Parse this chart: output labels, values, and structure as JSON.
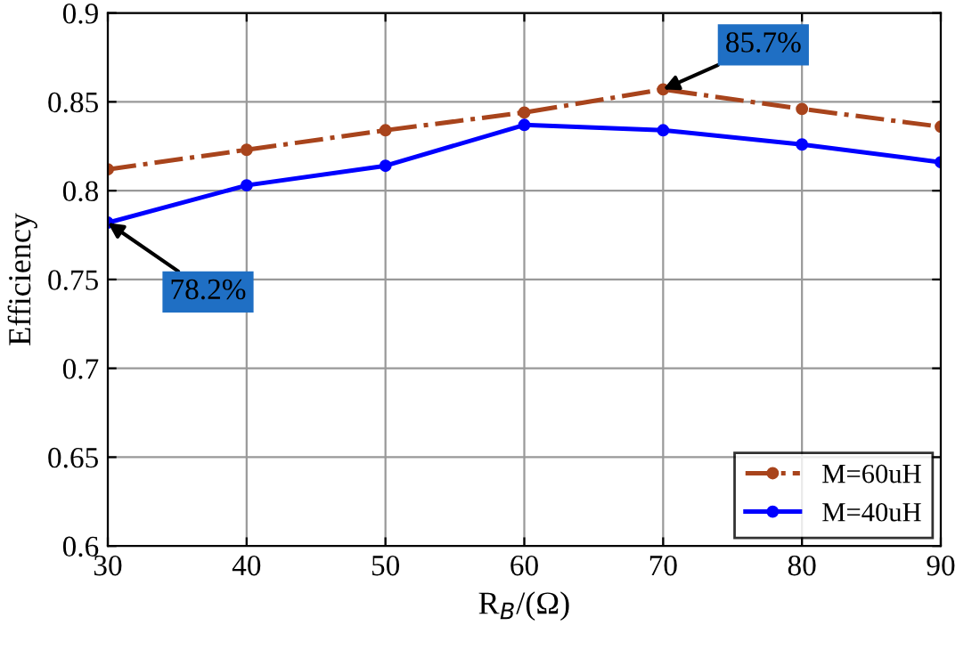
{
  "chart_data": {
    "type": "line",
    "xlabel": "R$_{B}$/(Ω)",
    "ylabel": "Efficiency",
    "x": [
      30,
      40,
      50,
      60,
      70,
      80,
      90
    ],
    "series": [
      {
        "name": "M=60uH",
        "color": "#a8441c",
        "line_style": "dashed",
        "values": [
          0.812,
          0.823,
          0.834,
          0.844,
          0.857,
          0.846,
          0.836
        ]
      },
      {
        "name": "M=40uH",
        "color": "#0000ff",
        "line_style": "solid",
        "values": [
          0.782,
          0.803,
          0.814,
          0.837,
          0.834,
          0.826,
          0.816
        ]
      }
    ],
    "xlim": [
      30,
      90
    ],
    "xticks": [
      30,
      40,
      50,
      60,
      70,
      80,
      90
    ],
    "ylim": [
      0.6,
      0.9
    ],
    "yticks": [
      0.6,
      0.65,
      0.7,
      0.75,
      0.8,
      0.85,
      0.9
    ],
    "annotations": [
      {
        "text": "85.7%",
        "x": 70,
        "y": 0.857
      },
      {
        "text": "78.2%",
        "x": 30,
        "y": 0.782
      }
    ],
    "grid": true,
    "legend": "bottom right",
    "marker": "circle"
  }
}
